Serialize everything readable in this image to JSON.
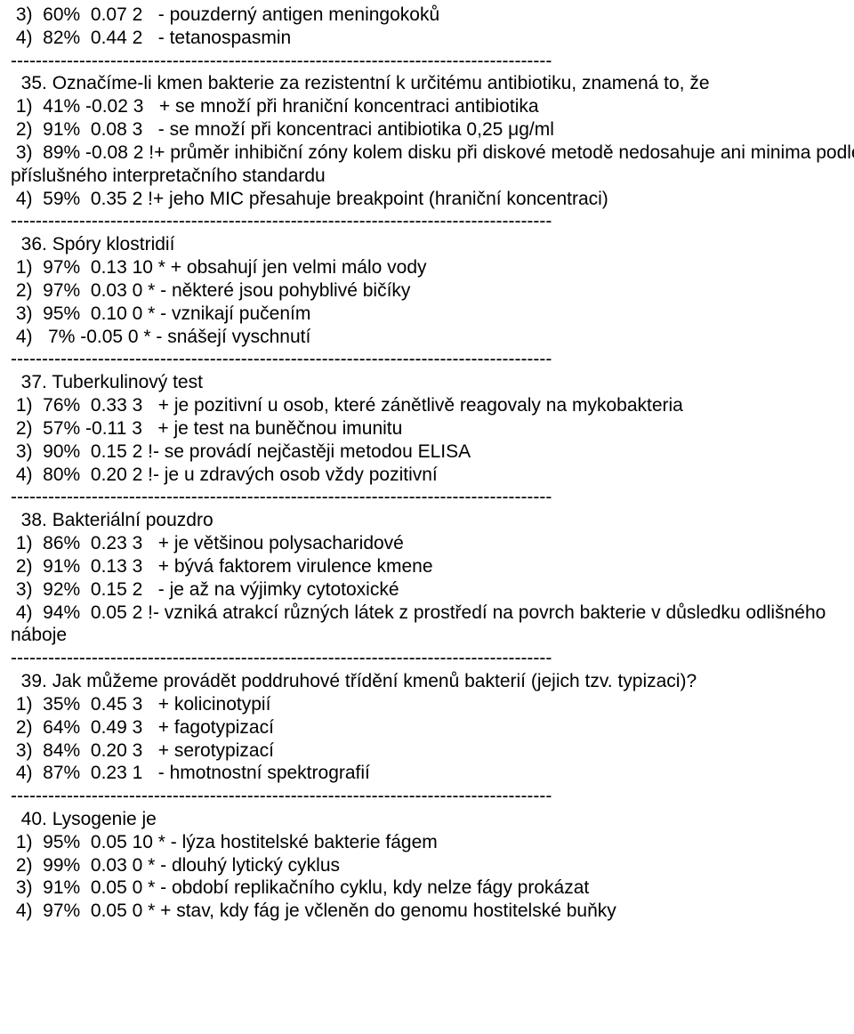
{
  "separator": "---------------------------------------------------------------------------------------",
  "blocks": [
    {
      "lines": [
        " 3)  60%  0.07 2   - pouzderný antigen meningokoků",
        " 4)  82%  0.44 2   - tetanospasmin"
      ]
    },
    {
      "lines": [
        "  35. Označíme-li kmen bakterie za rezistentní k určitému antibiotiku, znamená to, že",
        " 1)  41% -0.02 3   + se množí při hraniční koncentraci antibiotika",
        " 2)  91%  0.08 3   - se množí při koncentraci antibiotika 0,25 μg/ml",
        " 3)  89% -0.08 2 !+ průměr inhibiční zóny kolem disku při diskové metodě nedosahuje ani minima podle příslušného interpretačního standardu",
        " 4)  59%  0.35 2 !+ jeho MIC přesahuje breakpoint (hraniční koncentraci)"
      ]
    },
    {
      "lines": [
        "  36. Spóry klostridií",
        " 1)  97%  0.13 10 * + obsahují jen velmi málo vody",
        " 2)  97%  0.03 0 * - některé jsou pohyblivé bičíky",
        " 3)  95%  0.10 0 * - vznikají pučením",
        " 4)   7% -0.05 0 * - snášejí vyschnutí"
      ]
    },
    {
      "lines": [
        "  37. Tuberkulinový test",
        " 1)  76%  0.33 3   + je pozitivní u osob, které zánětlivě reagovaly na mykobakteria",
        " 2)  57% -0.11 3   + je test na buněčnou imunitu",
        " 3)  90%  0.15 2 !- se provádí nejčastěji metodou ELISA",
        " 4)  80%  0.20 2 !- je u zdravých osob vždy pozitivní"
      ]
    },
    {
      "lines": [
        "  38. Bakteriální pouzdro",
        " 1)  86%  0.23 3   + je většinou polysacharidové",
        " 2)  91%  0.13 3   + bývá faktorem virulence kmene",
        " 3)  92%  0.15 2   - je až na výjimky cytotoxické",
        " 4)  94%  0.05 2 !- vzniká atrakcí různých látek z prostředí na povrch bakterie v důsledku odlišného náboje"
      ]
    },
    {
      "lines": [
        "  39. Jak můžeme provádět poddruhové třídění kmenů bakterií (jejich tzv. typizaci)?",
        " 1)  35%  0.45 3   + kolicinotypií",
        " 2)  64%  0.49 3   + fagotypizací",
        " 3)  84%  0.20 3   + serotypizací",
        " 4)  87%  0.23 1   - hmotnostní spektrografií"
      ]
    },
    {
      "lines": [
        "  40. Lysogenie je",
        " 1)  95%  0.05 10 * - lýza hostitelské bakterie fágem",
        " 2)  99%  0.03 0 * - dlouhý lytický cyklus",
        " 3)  91%  0.05 0 * - období replikačního cyklu, kdy nelze fágy prokázat",
        " 4)  97%  0.05 0 * + stav, kdy fág je včleněn do genomu hostitelské buňky"
      ]
    }
  ]
}
